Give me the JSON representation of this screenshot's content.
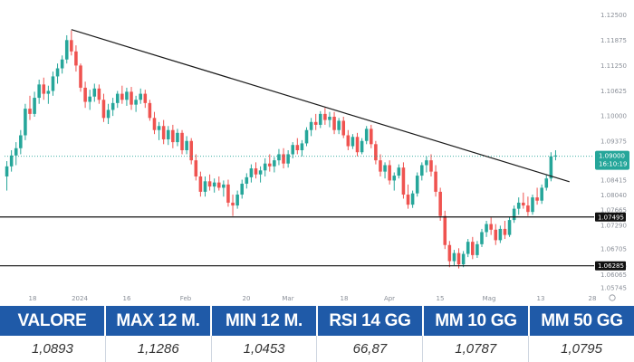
{
  "colors": {
    "up": "#26a69a",
    "down": "#ef5350",
    "price_tag": "#26a69a",
    "level_tag": "#111111",
    "header_bg": "#1f5aa8",
    "trendline": "#1a1a1a"
  },
  "chart_data": {
    "type": "candlestick",
    "y_ticks": [
      "1.12500",
      "1.11875",
      "1.11250",
      "1.10625",
      "1.10000",
      "1.09375",
      "1.08415",
      "1.08040",
      "1.07665",
      "1.07290",
      "1.06705",
      "1.06285",
      "1.06065",
      "1.05745"
    ],
    "x_ticks": [
      "18",
      "2024",
      "16",
      "Feb",
      "20",
      "Mar",
      "18",
      "Apr",
      "15",
      "Mag",
      "13",
      "28"
    ],
    "ylim": [
      1.0565,
      1.1265
    ],
    "grid": false,
    "current_price": {
      "value": 1.09,
      "label": "1.09000",
      "sub_label": "16:10:19"
    },
    "levels": [
      {
        "value": 1.07495,
        "label": "1.07495"
      },
      {
        "value": 1.06285,
        "label": "1.06285"
      }
    ],
    "trendline": {
      "start": {
        "index": 14,
        "value": 1.1214
      },
      "end": {
        "index": 122,
        "value": 1.0837
      }
    },
    "candles": [
      [
        1.085,
        1.0888,
        1.0815,
        1.0875
      ],
      [
        1.0875,
        1.0915,
        1.0862,
        1.0902
      ],
      [
        1.0902,
        1.0935,
        1.0878,
        1.092
      ],
      [
        1.092,
        1.0965,
        1.0905,
        1.0952
      ],
      [
        1.0952,
        1.103,
        1.094,
        1.1018
      ],
      [
        1.1018,
        1.105,
        1.099,
        1.1005
      ],
      [
        1.1005,
        1.106,
        1.0998,
        1.1045
      ],
      [
        1.1045,
        1.109,
        1.103,
        1.1078
      ],
      [
        1.1078,
        1.1095,
        1.104,
        1.1055
      ],
      [
        1.1055,
        1.1075,
        1.103,
        1.1062
      ],
      [
        1.1062,
        1.111,
        1.105,
        1.1098
      ],
      [
        1.1098,
        1.113,
        1.108,
        1.1118
      ],
      [
        1.1118,
        1.115,
        1.1105,
        1.114
      ],
      [
        1.114,
        1.12,
        1.113,
        1.1188
      ],
      [
        1.1188,
        1.1212,
        1.115,
        1.116
      ],
      [
        1.116,
        1.1175,
        1.111,
        1.1125
      ],
      [
        1.1125,
        1.113,
        1.106,
        1.107
      ],
      [
        1.107,
        1.1085,
        1.102,
        1.1035
      ],
      [
        1.1035,
        1.1065,
        1.1015,
        1.1048
      ],
      [
        1.1048,
        1.108,
        1.1035,
        1.1068
      ],
      [
        1.1068,
        1.1078,
        1.103,
        1.104
      ],
      [
        1.104,
        1.1055,
        1.0985,
        1.0995
      ],
      [
        1.0995,
        1.103,
        1.098,
        1.1015
      ],
      [
        1.1015,
        1.1045,
        1.1,
        1.1032
      ],
      [
        1.1032,
        1.1062,
        1.102,
        1.1055
      ],
      [
        1.1055,
        1.1075,
        1.103,
        1.104
      ],
      [
        1.104,
        1.107,
        1.1025,
        1.106
      ],
      [
        1.106,
        1.1072,
        1.1015,
        1.1028
      ],
      [
        1.1028,
        1.105,
        1.101,
        1.104
      ],
      [
        1.104,
        1.1068,
        1.103,
        1.1055
      ],
      [
        1.1055,
        1.1065,
        1.102,
        1.1032
      ],
      [
        1.1032,
        1.104,
        1.0988,
        1.0995
      ],
      [
        1.0995,
        1.101,
        1.0955,
        1.0965
      ],
      [
        1.0965,
        1.0985,
        1.094,
        1.0975
      ],
      [
        1.0975,
        1.099,
        1.093,
        1.0942
      ],
      [
        1.0942,
        1.0975,
        1.0928,
        1.0965
      ],
      [
        1.0965,
        1.0978,
        1.092,
        1.0935
      ],
      [
        1.0935,
        1.0968,
        1.0925,
        1.0958
      ],
      [
        1.0958,
        1.0965,
        1.0905,
        1.0915
      ],
      [
        1.0915,
        1.095,
        1.0905,
        1.0938
      ],
      [
        1.0938,
        1.0945,
        1.088,
        1.089
      ],
      [
        1.089,
        1.0905,
        1.084,
        1.085
      ],
      [
        1.085,
        1.0862,
        1.08,
        1.0812
      ],
      [
        1.0812,
        1.085,
        1.08,
        1.0838
      ],
      [
        1.0838,
        1.0855,
        1.0815,
        1.0825
      ],
      [
        1.0825,
        1.0845,
        1.081,
        1.0835
      ],
      [
        1.0835,
        1.085,
        1.0815,
        1.0822
      ],
      [
        1.0822,
        1.084,
        1.08,
        1.083
      ],
      [
        1.083,
        1.0842,
        1.0775,
        1.0785
      ],
      [
        1.0785,
        1.0805,
        1.0752,
        1.0778
      ],
      [
        1.0778,
        1.0815,
        1.077,
        1.0805
      ],
      [
        1.0805,
        1.0842,
        1.0795,
        1.0832
      ],
      [
        1.0832,
        1.0858,
        1.082,
        1.0848
      ],
      [
        1.0848,
        1.088,
        1.0835,
        1.087
      ],
      [
        1.087,
        1.0885,
        1.0845,
        1.0855
      ],
      [
        1.0855,
        1.0875,
        1.0835,
        1.0865
      ],
      [
        1.0865,
        1.0895,
        1.085,
        1.0882
      ],
      [
        1.0882,
        1.0905,
        1.0862,
        1.0875
      ],
      [
        1.0875,
        1.0898,
        1.086,
        1.089
      ],
      [
        1.089,
        1.0918,
        1.0878,
        1.0905
      ],
      [
        1.0905,
        1.092,
        1.087,
        1.0882
      ],
      [
        1.0882,
        1.0915,
        1.0872,
        1.0905
      ],
      [
        1.0905,
        1.0935,
        1.0895,
        1.0928
      ],
      [
        1.0928,
        1.0945,
        1.0905,
        1.0915
      ],
      [
        1.0915,
        1.094,
        1.09,
        1.0932
      ],
      [
        1.0932,
        1.0972,
        1.0925,
        1.0965
      ],
      [
        1.0965,
        1.0995,
        1.095,
        1.0985
      ],
      [
        1.0985,
        1.1005,
        1.0965,
        1.0978
      ],
      [
        1.0978,
        1.1012,
        1.097,
        1.1005
      ],
      [
        1.1005,
        1.102,
        1.0978,
        1.099
      ],
      [
        1.099,
        1.101,
        1.0972,
        1.0998
      ],
      [
        1.0998,
        1.101,
        1.0955,
        1.0965
      ],
      [
        1.0965,
        1.0995,
        1.0955,
        1.0988
      ],
      [
        1.0988,
        1.0998,
        1.0945,
        1.0952
      ],
      [
        1.0952,
        1.0965,
        1.0915,
        1.0925
      ],
      [
        1.0925,
        1.0955,
        1.0918,
        1.0948
      ],
      [
        1.0948,
        1.0958,
        1.09,
        1.091
      ],
      [
        1.091,
        1.0945,
        1.0905,
        1.0938
      ],
      [
        1.0938,
        1.0975,
        1.093,
        1.0968
      ],
      [
        1.0968,
        1.0978,
        1.092,
        1.093
      ],
      [
        1.093,
        1.0938,
        1.088,
        1.089
      ],
      [
        1.089,
        1.0905,
        1.085,
        1.0862
      ],
      [
        1.0862,
        1.0885,
        1.0845,
        1.0878
      ],
      [
        1.0878,
        1.089,
        1.083,
        1.084
      ],
      [
        1.084,
        1.086,
        1.0815,
        1.0852
      ],
      [
        1.0852,
        1.088,
        1.0845,
        1.0872
      ],
      [
        1.0872,
        1.0885,
        1.0795,
        1.0805
      ],
      [
        1.0805,
        1.083,
        1.077,
        1.078
      ],
      [
        1.078,
        1.0815,
        1.0772,
        1.0808
      ],
      [
        1.0808,
        1.086,
        1.08,
        1.0852
      ],
      [
        1.0852,
        1.0885,
        1.084,
        1.0878
      ],
      [
        1.0878,
        1.09,
        1.086,
        1.089
      ],
      [
        1.089,
        1.0905,
        1.085,
        1.0862
      ],
      [
        1.0862,
        1.0878,
        1.08,
        1.0812
      ],
      [
        1.0812,
        1.0822,
        1.074,
        1.0752
      ],
      [
        1.0752,
        1.0765,
        1.067,
        1.068
      ],
      [
        1.068,
        1.069,
        1.0625,
        1.064
      ],
      [
        1.064,
        1.0668,
        1.063,
        1.066
      ],
      [
        1.066,
        1.0672,
        1.0622,
        1.0632
      ],
      [
        1.0632,
        1.0665,
        1.0625,
        1.0658
      ],
      [
        1.0658,
        1.0695,
        1.065,
        1.0688
      ],
      [
        1.0688,
        1.07,
        1.0645,
        1.0655
      ],
      [
        1.0655,
        1.069,
        1.0648,
        1.0682
      ],
      [
        1.0682,
        1.072,
        1.0675,
        1.0712
      ],
      [
        1.0712,
        1.074,
        1.07,
        1.0732
      ],
      [
        1.0732,
        1.0748,
        1.0705,
        1.0718
      ],
      [
        1.0718,
        1.0732,
        1.068,
        1.0692
      ],
      [
        1.0692,
        1.0728,
        1.0685,
        1.072
      ],
      [
        1.072,
        1.074,
        1.0695,
        1.0705
      ],
      [
        1.0705,
        1.075,
        1.07,
        1.0742
      ],
      [
        1.0742,
        1.0778,
        1.0735,
        1.077
      ],
      [
        1.077,
        1.0798,
        1.0755,
        1.0785
      ],
      [
        1.0785,
        1.081,
        1.077,
        1.0778
      ],
      [
        1.0778,
        1.08,
        1.0752,
        1.0762
      ],
      [
        1.0762,
        1.0805,
        1.0755,
        1.0798
      ],
      [
        1.0798,
        1.0822,
        1.078,
        1.079
      ],
      [
        1.079,
        1.083,
        1.0782,
        1.0822
      ],
      [
        1.0822,
        1.0855,
        1.0815,
        1.0845
      ],
      [
        1.0845,
        1.091,
        1.0838,
        1.09
      ],
      [
        1.09,
        1.0915,
        1.089,
        1.0902
      ]
    ]
  },
  "table": {
    "headers": [
      "VALORE",
      "MAX 12 M.",
      "MIN 12 M.",
      "RSI 14 GG",
      "MM 10 GG",
      "MM 50 GG"
    ],
    "values": [
      "1,0893",
      "1,1286",
      "1,0453",
      "66,87",
      "1,0787",
      "1,0795"
    ]
  }
}
